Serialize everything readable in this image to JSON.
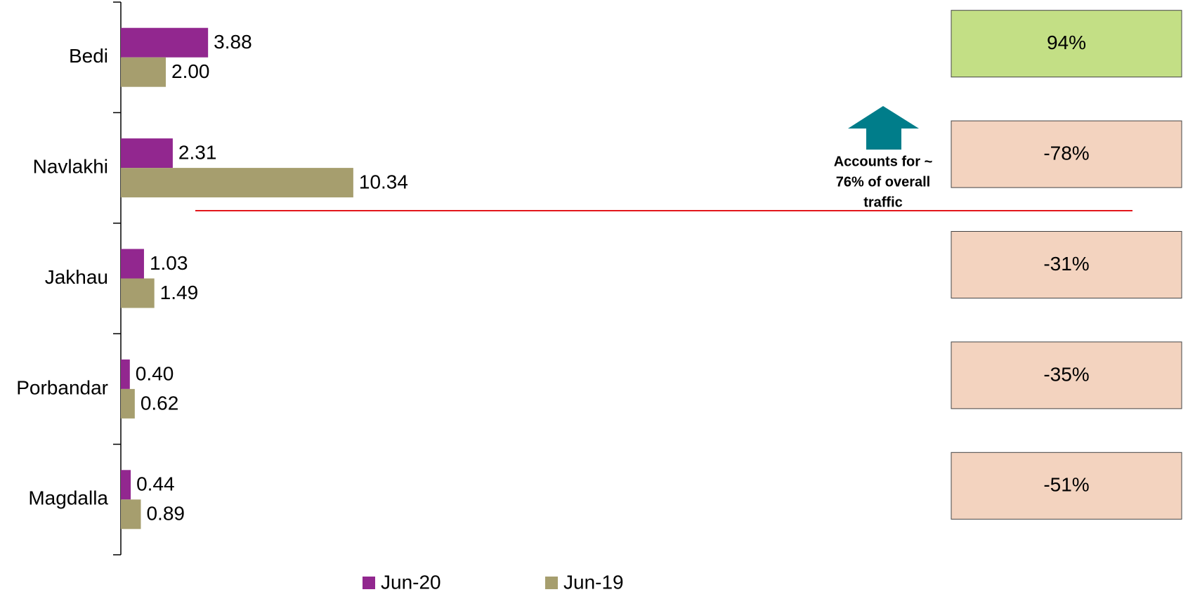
{
  "chart_data": {
    "type": "hbar",
    "categories": [
      "Bedi",
      "Navlakhi",
      "Jakhau",
      "Porbandar",
      "Magdalla"
    ],
    "series": [
      {
        "name": "Jun-20",
        "color": "#92278f",
        "values": [
          3.88,
          2.31,
          1.03,
          0.4,
          0.44
        ],
        "value_labels": [
          "3.88",
          "2.31",
          "1.03",
          "0.40",
          "0.44"
        ]
      },
      {
        "name": "Jun-19",
        "color": "#a69e6e",
        "values": [
          2.0,
          10.34,
          1.49,
          0.62,
          0.89
        ],
        "value_labels": [
          "2.00",
          "10.34",
          "1.49",
          "0.62",
          "0.89"
        ]
      }
    ],
    "changes": {
      "values": [
        94,
        -78,
        -31,
        -35,
        -51
      ],
      "value_labels": [
        "94%",
        "-78%",
        "-31%",
        "-35%",
        "-51%"
      ],
      "colors": [
        "#c3df85",
        "#f3d3bf",
        "#f3d3bf",
        "#f3d3bf",
        "#f3d3bf"
      ]
    },
    "annotation": [
      "Accounts for ~",
      "76% of overall",
      "traffic"
    ],
    "arrow_color": "#007d8a",
    "divider_color": "#e3161b"
  }
}
